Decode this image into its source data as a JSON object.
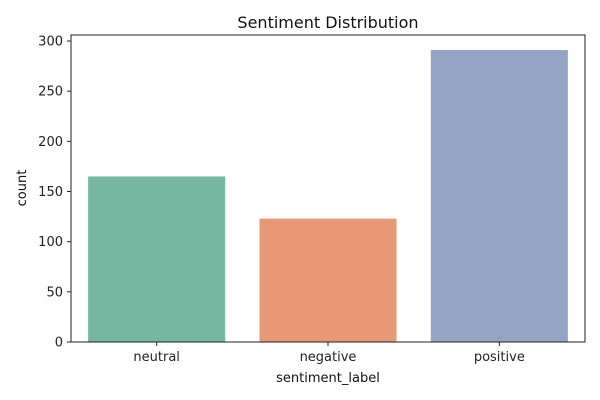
{
  "chart_data": {
    "type": "bar",
    "title": "Sentiment Distribution",
    "xlabel": "sentiment_label",
    "ylabel": "count",
    "categories": [
      "neutral",
      "negative",
      "positive"
    ],
    "values": [
      165,
      123,
      291
    ],
    "colors": [
      "#76b7a1",
      "#e99875",
      "#94a4c4"
    ],
    "ylim": [
      0,
      306
    ],
    "yticks": [
      0,
      50,
      100,
      150,
      200,
      250,
      300
    ],
    "grid": false
  }
}
